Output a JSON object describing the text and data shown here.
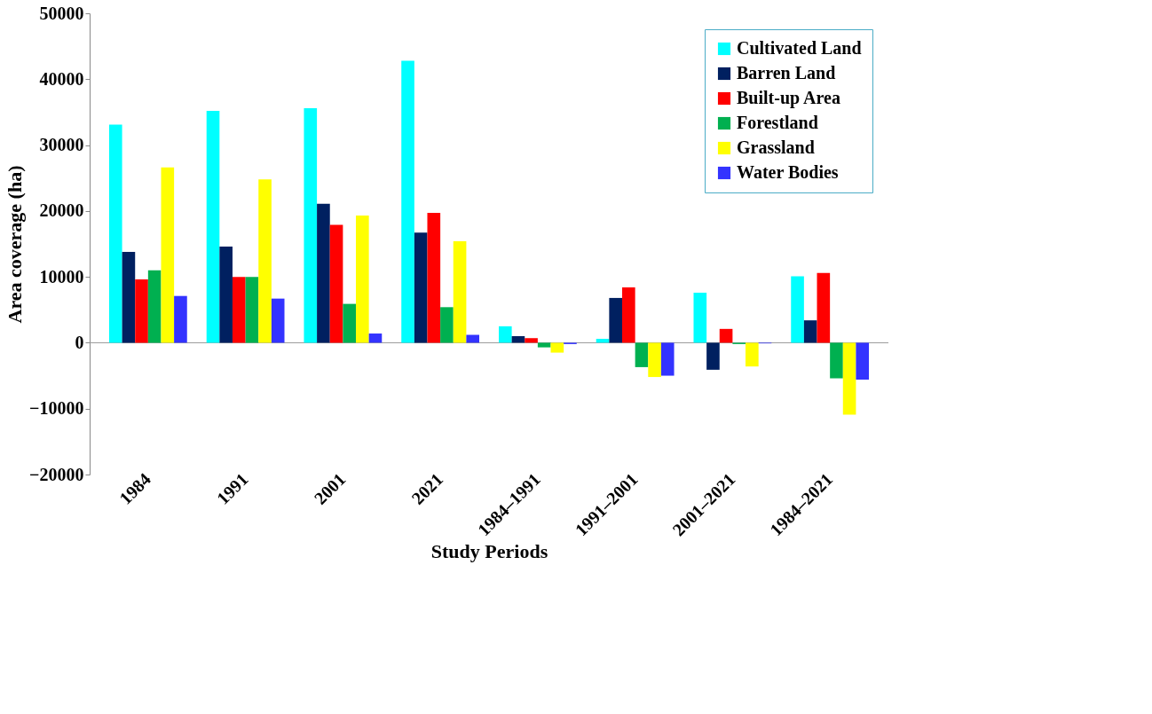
{
  "chart_data": {
    "type": "bar",
    "xlabel": "Study Periods",
    "ylabel": "Area coverage (ha)",
    "categories": [
      "1984",
      "1991",
      "2001",
      "2021",
      "1984–1991",
      "1991–2001",
      "2001–2021",
      "1984–2021"
    ],
    "series": [
      {
        "name": "Cultivated Land",
        "color": "#00ffff",
        "values": [
          33100,
          35200,
          35600,
          42800,
          2500,
          600,
          7600,
          10100
        ]
      },
      {
        "name": "Barren Land",
        "color": "#002060",
        "values": [
          13800,
          14600,
          21100,
          16700,
          1000,
          6800,
          -4100,
          3400
        ]
      },
      {
        "name": "Built-up Area",
        "color": "#ff0000",
        "values": [
          9600,
          10000,
          17900,
          19700,
          700,
          8400,
          2100,
          10600
        ]
      },
      {
        "name": "Forestland",
        "color": "#00b050",
        "values": [
          11000,
          10000,
          5900,
          5400,
          -700,
          -3700,
          -200,
          -5400
        ]
      },
      {
        "name": "Grassland",
        "color": "#ffff00",
        "values": [
          26600,
          24800,
          19300,
          15400,
          -1500,
          -5200,
          -3600,
          -10900
        ]
      },
      {
        "name": "Water Bodies",
        "color": "#3333ff",
        "values": [
          7100,
          6700,
          1400,
          1200,
          -200,
          -5000,
          -100,
          -5600
        ]
      }
    ],
    "ylim": [
      -20000,
      50000
    ],
    "yticks": [
      -20000,
      -10000,
      0,
      10000,
      20000,
      30000,
      40000,
      50000
    ],
    "ref_lines": [
      {
        "axis": "y",
        "value": 0,
        "color": "#999999"
      }
    ],
    "legend": "top right"
  }
}
